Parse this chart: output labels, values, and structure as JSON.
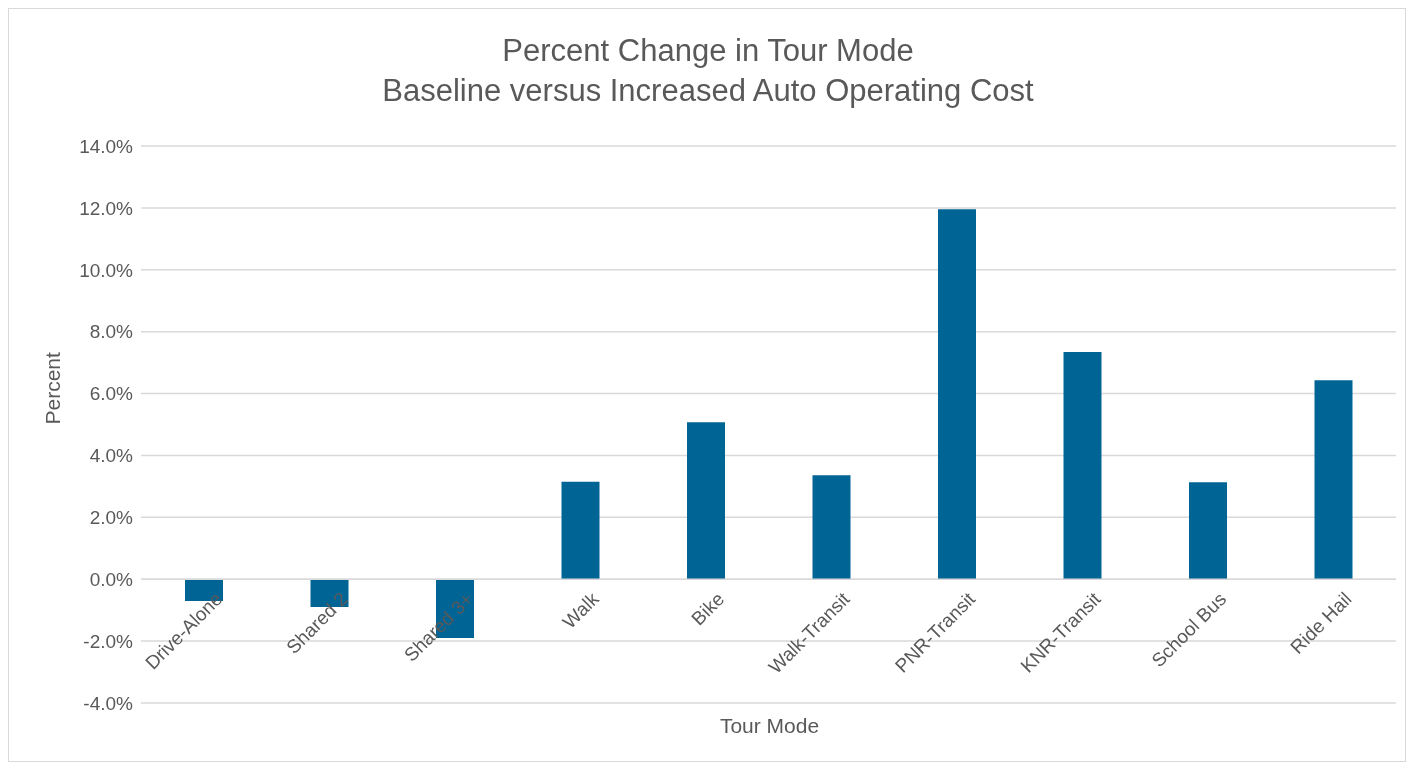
{
  "chart_data": {
    "type": "bar",
    "title": "Percent Change in Tour Mode",
    "subtitle": "Baseline versus Increased Auto Operating Cost",
    "xlabel": "Tour Mode",
    "ylabel": "Percent",
    "categories": [
      "Drive-Alone",
      "Shared 2",
      "Shared 3+",
      "Walk",
      "Bike",
      "Walk-Transit",
      "PNR-Transit",
      "KNR-Transit",
      "School Bus",
      "Ride Hail"
    ],
    "values": [
      -0.7,
      -0.9,
      -1.9,
      3.15,
      5.07,
      3.36,
      11.96,
      7.34,
      3.13,
      6.43
    ],
    "color": "#006495",
    "ylim": [
      -4,
      14
    ],
    "yticks": [
      {
        "value": -4,
        "label": "-4.0%"
      },
      {
        "value": -2,
        "label": "-2.0%"
      },
      {
        "value": 0,
        "label": "0.0%"
      },
      {
        "value": 2,
        "label": "2.0%"
      },
      {
        "value": 4,
        "label": "4.0%"
      },
      {
        "value": 6,
        "label": "6.0%"
      },
      {
        "value": 8,
        "label": "8.0%"
      },
      {
        "value": 10,
        "label": "10.0%"
      },
      {
        "value": 12,
        "label": "12.0%"
      },
      {
        "value": 14,
        "label": "14.0%"
      }
    ],
    "grid": "y",
    "legend": false
  }
}
